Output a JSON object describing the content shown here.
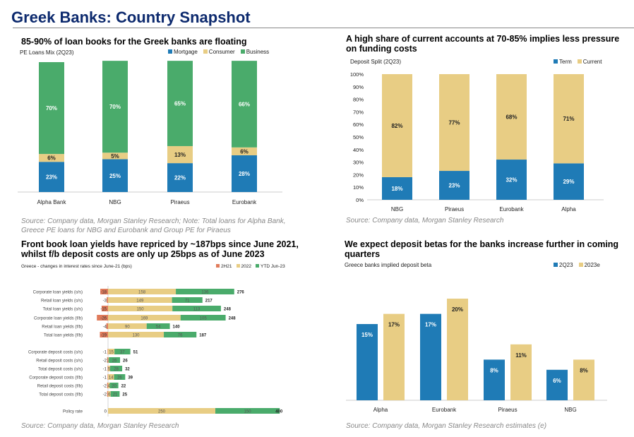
{
  "page_title": "Greek Banks: Country Snapshot",
  "colors": {
    "mortgage": "#1f7bb6",
    "consumer": "#e8cd84",
    "business": "#4aab6b",
    "2H21": "#e07b5b",
    "2022": "#e8cd84",
    "ytd": "#4aab6b",
    "term": "#1f7bb6",
    "current": "#e8cd84",
    "2Q23": "#1f7bb6",
    "2023e": "#e8cd84"
  },
  "chart_data": [
    {
      "type": "bar",
      "stacked": true,
      "title": "85-90% of loan books for the Greek banks are floating",
      "subtitle": "PE Loans Mix (2Q23)",
      "categories": [
        "Alpha Bank",
        "NBG",
        "Piraeus",
        "Eurobank"
      ],
      "series": [
        {
          "name": "Mortgage",
          "values": [
            23,
            25,
            22,
            28
          ]
        },
        {
          "name": "Consumer",
          "values": [
            6,
            5,
            13,
            6
          ]
        },
        {
          "name": "Business",
          "values": [
            70,
            70,
            65,
            66
          ]
        }
      ],
      "unit": "%",
      "legend": "top-right",
      "source": "Source: Company data, Morgan Stanley Research; Note: Total loans for Alpha Bank, Greece PE loans for NBG and Eurobank and Group PE for Piraeus"
    },
    {
      "type": "bar",
      "stacked": true,
      "title": "A high share of current accounts at 70-85% implies less pressure on funding costs",
      "subtitle": "Deposit Split (2Q23)",
      "categories": [
        "NBG",
        "Piraeus",
        "Eurobank",
        "Alpha"
      ],
      "series": [
        {
          "name": "Term",
          "values": [
            18,
            23,
            32,
            29
          ]
        },
        {
          "name": "Current",
          "values": [
            82,
            77,
            68,
            71
          ]
        }
      ],
      "ylim": [
        0,
        100
      ],
      "yticks": [
        "0%",
        "10%",
        "20%",
        "30%",
        "40%",
        "50%",
        "60%",
        "70%",
        "80%",
        "90%",
        "100%"
      ],
      "legend": "top-right",
      "source": "Source: Company data, Morgan Stanley Research"
    },
    {
      "type": "bar",
      "orientation": "horizontal",
      "stacked": true,
      "title": "Front book loan yields have repriced by ~187bps since June 2021, whilst f/b deposit costs are only up 25bps as of June 2023",
      "subtitle": "Greece - changes in interest rates since June-21 (bps)",
      "categories": [
        "Corporate loan yields (o/s)",
        "Retail loan yields (o/s)",
        "Total loan yields (o/s)",
        "Corporate loan yields (f/b)",
        "Retail loan yields (f/b)",
        "Total loan yields (f/b)",
        "Corporate deposit costs (o/s)",
        "Retail deposit costs (o/s)",
        "Total deposit costs (o/s)",
        "Corporate deposit costs (f/b)",
        "Retail deposit costs (f/b)",
        "Total deposit costs (f/b)",
        "Policy rate"
      ],
      "series": [
        {
          "name": "2H21",
          "values": [
            -18,
            -3,
            -15,
            -26,
            -4,
            -19,
            -1,
            -2,
            -1,
            -1,
            -2,
            -2,
            0
          ]
        },
        {
          "name": "2022",
          "values": [
            158,
            149,
            150,
            169,
            90,
            130,
            15,
            2,
            5,
            14,
            4,
            6,
            250
          ]
        },
        {
          "name": "YTD Jun-23",
          "values": [
            136,
            71,
            113,
            105,
            54,
            76,
            37,
            26,
            28,
            26,
            20,
            21,
            150
          ]
        }
      ],
      "totals": [
        276,
        217,
        248,
        248,
        140,
        187,
        51,
        26,
        32,
        39,
        22,
        25,
        400
      ],
      "legend": "top-right",
      "source": "Source: Company data, Morgan Stanley Research"
    },
    {
      "type": "bar",
      "title": "We expect deposit betas for the banks increase further in coming quarters",
      "subtitle": "Greece banks implied deposit beta",
      "categories": [
        "Alpha",
        "Eurobank",
        "Piraeus",
        "NBG"
      ],
      "series": [
        {
          "name": "2Q23",
          "values": [
            15,
            17,
            8,
            6
          ]
        },
        {
          "name": "2023e",
          "values": [
            17,
            20,
            11,
            8
          ]
        }
      ],
      "unit": "%",
      "legend": "top-right",
      "source": "Source: Company data, Morgan Stanley Research estimates (e)"
    }
  ]
}
